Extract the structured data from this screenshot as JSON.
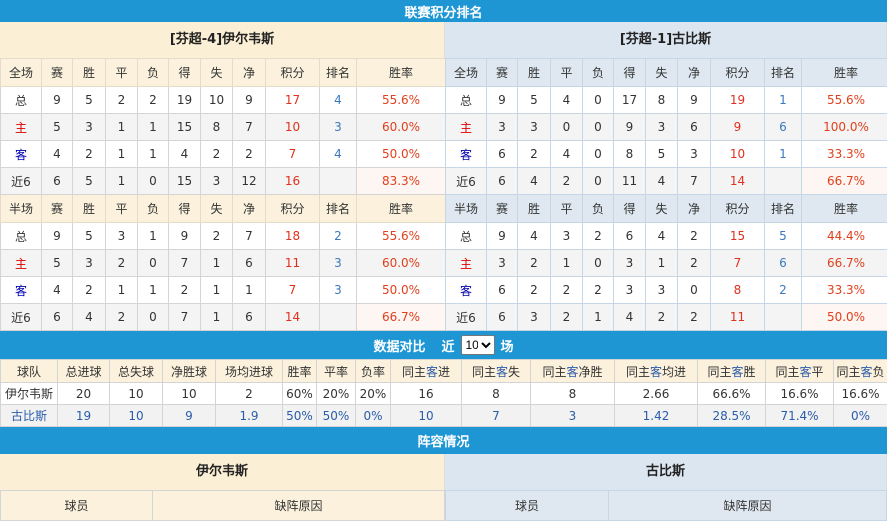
{
  "standings_title": "联赛积分排名",
  "home_team": {
    "title": "[芬超-4]伊尔韦斯",
    "full_header": [
      "全场",
      "赛",
      "胜",
      "平",
      "负",
      "得",
      "失",
      "净",
      "积分",
      "排名",
      "胜率"
    ],
    "full_rows": [
      [
        "总",
        "9",
        "5",
        "2",
        "2",
        "19",
        "10",
        "9",
        "17",
        "4",
        "55.6%"
      ],
      [
        "主",
        "5",
        "3",
        "1",
        "1",
        "15",
        "8",
        "7",
        "10",
        "3",
        "60.0%"
      ],
      [
        "客",
        "4",
        "2",
        "1",
        "1",
        "4",
        "2",
        "2",
        "7",
        "4",
        "50.0%"
      ],
      [
        "近6",
        "6",
        "5",
        "1",
        "0",
        "15",
        "3",
        "12",
        "16",
        "",
        "83.3%"
      ]
    ],
    "half_header": [
      "半场",
      "赛",
      "胜",
      "平",
      "负",
      "得",
      "失",
      "净",
      "积分",
      "排名",
      "胜率"
    ],
    "half_rows": [
      [
        "总",
        "9",
        "5",
        "3",
        "1",
        "9",
        "2",
        "7",
        "18",
        "2",
        "55.6%"
      ],
      [
        "主",
        "5",
        "3",
        "2",
        "0",
        "7",
        "1",
        "6",
        "11",
        "3",
        "60.0%"
      ],
      [
        "客",
        "4",
        "2",
        "1",
        "1",
        "2",
        "1",
        "1",
        "7",
        "3",
        "50.0%"
      ],
      [
        "近6",
        "6",
        "4",
        "2",
        "0",
        "7",
        "1",
        "6",
        "14",
        "",
        "66.7%"
      ]
    ]
  },
  "away_team": {
    "title": "[芬超-1]古比斯",
    "full_header": [
      "全场",
      "赛",
      "胜",
      "平",
      "负",
      "得",
      "失",
      "净",
      "积分",
      "排名",
      "胜率"
    ],
    "full_rows": [
      [
        "总",
        "9",
        "5",
        "4",
        "0",
        "17",
        "8",
        "9",
        "19",
        "1",
        "55.6%"
      ],
      [
        "主",
        "3",
        "3",
        "0",
        "0",
        "9",
        "3",
        "6",
        "9",
        "6",
        "100.0%"
      ],
      [
        "客",
        "6",
        "2",
        "4",
        "0",
        "8",
        "5",
        "3",
        "10",
        "1",
        "33.3%"
      ],
      [
        "近6",
        "6",
        "4",
        "2",
        "0",
        "11",
        "4",
        "7",
        "14",
        "",
        "66.7%"
      ]
    ],
    "half_header": [
      "半场",
      "赛",
      "胜",
      "平",
      "负",
      "得",
      "失",
      "净",
      "积分",
      "排名",
      "胜率"
    ],
    "half_rows": [
      [
        "总",
        "9",
        "4",
        "3",
        "2",
        "6",
        "4",
        "2",
        "15",
        "5",
        "44.4%"
      ],
      [
        "主",
        "3",
        "2",
        "1",
        "0",
        "3",
        "1",
        "2",
        "7",
        "6",
        "66.7%"
      ],
      [
        "客",
        "6",
        "2",
        "2",
        "2",
        "3",
        "3",
        "0",
        "8",
        "2",
        "33.3%"
      ],
      [
        "近6",
        "6",
        "3",
        "2",
        "1",
        "4",
        "2",
        "2",
        "11",
        "",
        "50.0%"
      ]
    ]
  },
  "compare": {
    "title": "数据对比",
    "prefix": "近",
    "selected": "10",
    "suffix": "场",
    "header": [
      "球队",
      "总进球",
      "总失球",
      "净胜球",
      "场均进球",
      "胜率",
      "平率",
      "负率",
      "同主客进",
      "同主客失",
      "同主客净胜",
      "同主客均进",
      "同主客胜",
      "同主客平",
      "同主客负"
    ],
    "rows": [
      [
        "伊尔韦斯",
        "20",
        "10",
        "10",
        "2",
        "60%",
        "20%",
        "20%",
        "16",
        "8",
        "8",
        "2.66",
        "66.6%",
        "16.6%",
        "16.6%"
      ],
      [
        "古比斯",
        "19",
        "10",
        "9",
        "1.9",
        "50%",
        "50%",
        "0%",
        "10",
        "7",
        "3",
        "1.42",
        "28.5%",
        "71.4%",
        "0%"
      ]
    ]
  },
  "lineup": {
    "title": "阵容情况",
    "home_name": "伊尔韦斯",
    "away_name": "古比斯",
    "col_player": "球员",
    "col_reason": "缺阵原因"
  },
  "colors": {
    "bar": "#1e96d4",
    "home_bg": "#fbefd5",
    "away_bg": "#dce6f0",
    "points": "#e0301e",
    "rank": "#3a78c0"
  }
}
